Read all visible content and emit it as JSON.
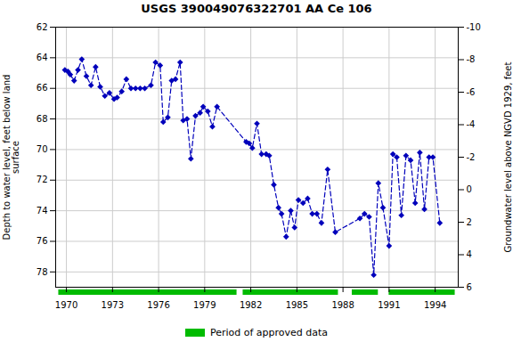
{
  "chart_data": {
    "type": "line",
    "title": "USGS 390049076322701 AA Ce 106",
    "ylabel": "Depth to water level, feet below land\nsurface",
    "y2label": "Groundwater level above NGVD 1929, feet",
    "xlim": [
      1969.3,
      1995.5
    ],
    "xticks": [
      1970,
      1973,
      1976,
      1979,
      1982,
      1985,
      1988,
      1991,
      1994
    ],
    "ylim": [
      79,
      62
    ],
    "yticks": [
      62,
      64,
      66,
      68,
      70,
      72,
      74,
      76,
      78
    ],
    "y2lim": [
      6,
      -10
    ],
    "y2ticks": [
      6,
      4,
      2,
      0,
      -2,
      -4,
      -6,
      -8,
      -10
    ],
    "grid": true,
    "legend": "bottom",
    "x": [
      1969.9,
      1970.1,
      1970.25,
      1970.5,
      1970.75,
      1971.0,
      1971.3,
      1971.6,
      1971.9,
      1972.2,
      1972.5,
      1972.8,
      1973.1,
      1973.3,
      1973.6,
      1973.9,
      1974.2,
      1974.5,
      1974.8,
      1975.1,
      1975.5,
      1975.8,
      1976.1,
      1976.3,
      1976.6,
      1976.85,
      1977.1,
      1977.4,
      1977.6,
      1977.85,
      1978.1,
      1978.4,
      1978.7,
      1978.9,
      1979.2,
      1979.5,
      1979.8,
      1981.7,
      1981.9,
      1982.1,
      1982.4,
      1982.7,
      1983.0,
      1983.2,
      1983.5,
      1983.8,
      1984.0,
      1984.3,
      1984.6,
      1984.85,
      1985.1,
      1985.4,
      1985.7,
      1986.0,
      1986.3,
      1986.6,
      1987.0,
      1987.5,
      1989.1,
      1989.4,
      1989.7,
      1990.0,
      1990.3,
      1990.6,
      1991.0,
      1991.25,
      1991.5,
      1991.8,
      1992.1,
      1992.4,
      1992.7,
      1993.0,
      1993.3,
      1993.6,
      1993.85,
      1994.3
    ],
    "series": [
      {
        "color": "#0000BB",
        "marker": "diamond",
        "line_style": "dashed",
        "axis": "y",
        "values": [
          64.8,
          64.9,
          65.1,
          65.5,
          64.8,
          64.1,
          65.2,
          65.8,
          64.6,
          65.9,
          66.5,
          66.3,
          66.7,
          66.6,
          66.2,
          65.4,
          66.0,
          66.0,
          66.0,
          66.0,
          65.8,
          64.3,
          64.5,
          68.2,
          67.9,
          65.5,
          65.4,
          64.3,
          68.1,
          68.0,
          70.6,
          67.8,
          67.6,
          67.2,
          67.5,
          68.5,
          67.2,
          69.5,
          69.6,
          69.9,
          68.3,
          70.3,
          70.3,
          70.4,
          72.3,
          73.8,
          74.2,
          75.7,
          74.0,
          75.1,
          73.3,
          73.5,
          73.2,
          74.2,
          74.2,
          74.8,
          71.3,
          75.4,
          74.5,
          74.2,
          74.4,
          78.2,
          72.2,
          73.8,
          76.3,
          70.3,
          70.5,
          74.3,
          70.4,
          70.7,
          73.5,
          70.2,
          73.9,
          70.5,
          70.5,
          74.8
        ]
      }
    ],
    "approved_segments": {
      "name": "Period of approved data",
      "color": "#00BB00",
      "values": [
        [
          1969.5,
          1981.1
        ],
        [
          1981.5,
          1987.7
        ],
        [
          1988.6,
          1990.3
        ],
        [
          1991.0,
          1995.3
        ]
      ]
    }
  }
}
